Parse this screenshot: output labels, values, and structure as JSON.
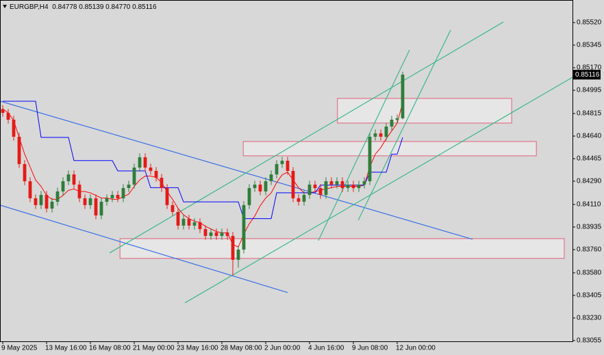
{
  "chart_data": {
    "type": "candlestick",
    "symbol": "EURGBP,H4",
    "header_values": [
      "0.84778",
      "0.85139",
      "0.84770",
      "0.85116"
    ],
    "last_price": {
      "value": 0.85116,
      "label": "0.85116"
    },
    "bull_color": "#2f7d3a",
    "bear_color": "#e41b17",
    "open": [
      0.8485,
      0.8482,
      0.84767,
      0.84635,
      0.84423,
      0.8429,
      0.84158,
      0.84105,
      0.84184,
      0.84078,
      0.84131,
      0.84211,
      0.8429,
      0.84343,
      0.84264,
      0.84158,
      0.84105,
      0.84158,
      0.84025,
      0.84131,
      0.84158,
      0.84184,
      0.84158,
      0.84237,
      0.84264,
      0.84396,
      0.84476,
      0.84396,
      0.8437,
      0.84317,
      0.84237,
      0.84105,
      0.84052,
      0.83946,
      0.83999,
      0.83946,
      0.83972,
      0.83919,
      0.83866,
      0.83893,
      0.83866,
      0.83893,
      0.83866,
      0.83681,
      0.8376,
      0.84105,
      0.84237,
      0.84264,
      0.84211,
      0.8429,
      0.84343,
      0.84423,
      0.84449,
      0.8437,
      0.84158,
      0.84131,
      0.84184,
      0.84264,
      0.84237,
      0.84184,
      0.8429,
      0.84264,
      0.8429,
      0.84237,
      0.84264,
      0.84237,
      0.84264,
      0.8429,
      0.84635,
      0.84661,
      0.84635,
      0.84714,
      0.84767,
      0.84778
    ],
    "high": [
      0.8488,
      0.8485,
      0.84797,
      0.84665,
      0.84453,
      0.8432,
      0.84188,
      0.84214,
      0.84214,
      0.84161,
      0.84241,
      0.8432,
      0.84373,
      0.84373,
      0.84294,
      0.84188,
      0.84188,
      0.84188,
      0.84161,
      0.84188,
      0.84214,
      0.84214,
      0.84267,
      0.84294,
      0.84426,
      0.84506,
      0.84506,
      0.84426,
      0.844,
      0.84347,
      0.84267,
      0.84135,
      0.84082,
      0.84029,
      0.84029,
      0.84002,
      0.84002,
      0.83949,
      0.83923,
      0.83923,
      0.83923,
      0.83923,
      0.83896,
      0.8379,
      0.84135,
      0.84267,
      0.84294,
      0.84294,
      0.8432,
      0.84373,
      0.84453,
      0.84479,
      0.84479,
      0.844,
      0.84188,
      0.84214,
      0.84294,
      0.84294,
      0.84267,
      0.8432,
      0.8432,
      0.8432,
      0.8432,
      0.84294,
      0.84294,
      0.84294,
      0.8432,
      0.84665,
      0.84691,
      0.84691,
      0.84744,
      0.84797,
      0.84808,
      0.85139
    ],
    "low": [
      0.8479,
      0.84737,
      0.84605,
      0.84393,
      0.8426,
      0.84128,
      0.84075,
      0.84075,
      0.84048,
      0.84048,
      0.84101,
      0.84181,
      0.8426,
      0.84234,
      0.84128,
      0.84075,
      0.84075,
      0.83995,
      0.83995,
      0.84101,
      0.84128,
      0.84128,
      0.84128,
      0.84207,
      0.84234,
      0.84366,
      0.84366,
      0.8434,
      0.84287,
      0.84207,
      0.84075,
      0.84022,
      0.83916,
      0.83916,
      0.83916,
      0.83916,
      0.83889,
      0.83836,
      0.83836,
      0.83836,
      0.83836,
      0.83836,
      0.8356,
      0.8362,
      0.8373,
      0.84075,
      0.84207,
      0.84181,
      0.84181,
      0.8426,
      0.84313,
      0.84393,
      0.8434,
      0.84128,
      0.84101,
      0.84101,
      0.84154,
      0.84207,
      0.84154,
      0.84154,
      0.84234,
      0.84234,
      0.84207,
      0.84207,
      0.84207,
      0.84207,
      0.84234,
      0.8426,
      0.84605,
      0.84605,
      0.84605,
      0.84684,
      0.84737,
      0.8477
    ],
    "close": [
      0.8482,
      0.84767,
      0.84635,
      0.84423,
      0.8429,
      0.84158,
      0.84105,
      0.84184,
      0.84078,
      0.84131,
      0.84211,
      0.8429,
      0.84343,
      0.84264,
      0.84158,
      0.84105,
      0.84158,
      0.84025,
      0.84131,
      0.84158,
      0.84184,
      0.84158,
      0.84237,
      0.84264,
      0.84396,
      0.84476,
      0.84396,
      0.8437,
      0.84317,
      0.84237,
      0.84105,
      0.84052,
      0.83946,
      0.83999,
      0.83946,
      0.83972,
      0.83919,
      0.83866,
      0.83893,
      0.83866,
      0.83893,
      0.83866,
      0.83681,
      0.8376,
      0.84105,
      0.84237,
      0.84264,
      0.84211,
      0.8429,
      0.84343,
      0.84423,
      0.84449,
      0.8437,
      0.84158,
      0.84131,
      0.84184,
      0.84264,
      0.84237,
      0.84184,
      0.8429,
      0.84264,
      0.8429,
      0.84237,
      0.84264,
      0.84237,
      0.84264,
      0.8429,
      0.84635,
      0.84661,
      0.84635,
      0.84714,
      0.84767,
      0.84778,
      0.85116
    ],
    "series": [
      {
        "color": "#ff0000",
        "values": [
          0.8485,
          0.8482,
          0.8476,
          0.8463,
          0.845,
          0.844,
          0.843,
          0.8425,
          0.8418,
          0.8415,
          0.8415,
          0.8418,
          0.8422,
          0.8423,
          0.8421,
          0.8421,
          0.842,
          0.8418,
          0.8416,
          0.8416,
          0.8415,
          0.8415,
          0.8417,
          0.8419,
          0.8425,
          0.843,
          0.8433,
          0.8433,
          0.8432,
          0.8428,
          0.8421,
          0.8415,
          0.8408,
          0.8403,
          0.84,
          0.8398,
          0.8397,
          0.8394,
          0.8392,
          0.839,
          0.8389,
          0.8389,
          0.838,
          0.8378,
          0.8388,
          0.8396,
          0.8402,
          0.841,
          0.8416,
          0.842,
          0.8428,
          0.8434,
          0.8436,
          0.843,
          0.8424,
          0.842,
          0.842,
          0.8421,
          0.8422,
          0.8423,
          0.8424,
          0.8425,
          0.8425,
          0.8425,
          0.8425,
          0.8425,
          0.8426,
          0.844,
          0.845,
          0.8455,
          0.8462,
          0.8468,
          0.8474,
          0.849
        ]
      },
      {
        "color": "#0000ff",
        "values": [
          0.8491,
          0.8491,
          0.8491,
          0.8491,
          0.8491,
          0.8491,
          0.8491,
          0.8463,
          0.8463,
          0.8463,
          0.8463,
          0.8463,
          0.8463,
          0.8445,
          0.8445,
          0.8445,
          0.8445,
          0.8445,
          0.8445,
          0.8445,
          0.8445,
          0.8437,
          0.8437,
          0.8437,
          0.8437,
          0.8437,
          0.8437,
          0.8424,
          0.8424,
          0.8424,
          0.8424,
          0.8424,
          0.8424,
          0.8413,
          0.8413,
          0.8413,
          0.8413,
          0.8413,
          0.8413,
          0.8413,
          0.8413,
          0.8413,
          0.8413,
          0.8413,
          0.84,
          0.84,
          0.84,
          0.84,
          0.84,
          0.84,
          0.842,
          0.842,
          0.842,
          0.842,
          0.842,
          0.842,
          0.842,
          0.842,
          0.8426,
          0.8426,
          0.8426,
          0.8426,
          0.8426,
          0.8426,
          0.8426,
          0.8426,
          0.8426,
          0.8436,
          0.8436,
          0.8436,
          0.8436,
          0.845,
          0.845,
          0.8463
        ]
      }
    ],
    "trendlines": [
      {
        "color": "#3a6ee8",
        "x": [
          -0.5,
          85.75
        ],
        "y": [
          0.84911,
          0.8384
        ]
      },
      {
        "color": "#3a6ee8",
        "x": [
          -0.5,
          52
        ],
        "y": [
          0.84105,
          0.83427
        ]
      },
      {
        "color": "#3cb88a",
        "x": [
          19.5,
          91.4
        ],
        "y": [
          0.83734,
          0.85525
        ]
      },
      {
        "color": "#3cb88a",
        "x": [
          33.25,
          104
        ],
        "y": [
          0.83347,
          0.85096
        ]
      },
      {
        "color": "#3cb88a",
        "x": [
          57.6,
          74.25
        ],
        "y": [
          0.83829,
          0.85308
        ]
      },
      {
        "color": "#3cb88a",
        "x": [
          64.9,
          81.75
        ],
        "y": [
          0.83988,
          0.85462
        ]
      }
    ],
    "zones": [
      {
        "x": [
          61.1,
          92.9
        ],
        "y": [
          0.84932,
          0.84741
        ]
      },
      {
        "x": [
          43.9,
          97.4
        ],
        "y": [
          0.84598,
          0.84487
        ]
      },
      {
        "x": [
          21.4,
          102.5
        ],
        "y": [
          0.83845,
          0.83692
        ]
      }
    ],
    "zone_color": "#e0607a",
    "xlim": [
      -0.5,
      104
    ],
    "xticks": [
      {
        "value": 0,
        "label": "9 May 2025"
      },
      {
        "value": 8,
        "label": "13 May 16:00"
      },
      {
        "value": 16,
        "label": "16 May 08:00"
      },
      {
        "value": 24,
        "label": "21 May 00:00"
      },
      {
        "value": 32,
        "label": "23 May 16:00"
      },
      {
        "value": 40,
        "label": "28 May 08:00"
      },
      {
        "value": 48,
        "label": "2 Jun 00:00"
      },
      {
        "value": 56,
        "label": "4 Jun 16:00"
      },
      {
        "value": 64,
        "label": "9 Jun 08:00"
      },
      {
        "value": 72,
        "label": "12 Jun 00:00"
      }
    ],
    "ylim": [
      0.83049,
      0.85695
    ],
    "yticks": [
      {
        "value": 0.8552,
        "label": "0.85520"
      },
      {
        "value": 0.85345,
        "label": "0.85345"
      },
      {
        "value": 0.8517,
        "label": "0.85170"
      },
      {
        "value": 0.84995,
        "label": "0.84995"
      },
      {
        "value": 0.84815,
        "label": "0.84815"
      },
      {
        "value": 0.8464,
        "label": "0.84640"
      },
      {
        "value": 0.84465,
        "label": "0.84465"
      },
      {
        "value": 0.8429,
        "label": "0.84290"
      },
      {
        "value": 0.8411,
        "label": "0.84110"
      },
      {
        "value": 0.83935,
        "label": "0.83935"
      },
      {
        "value": 0.8376,
        "label": "0.83760"
      },
      {
        "value": 0.8358,
        "label": "0.83580"
      },
      {
        "value": 0.83405,
        "label": "0.83405"
      },
      {
        "value": 0.8323,
        "label": "0.83230"
      },
      {
        "value": 0.83055,
        "label": "0.83055"
      }
    ],
    "grid": false
  }
}
